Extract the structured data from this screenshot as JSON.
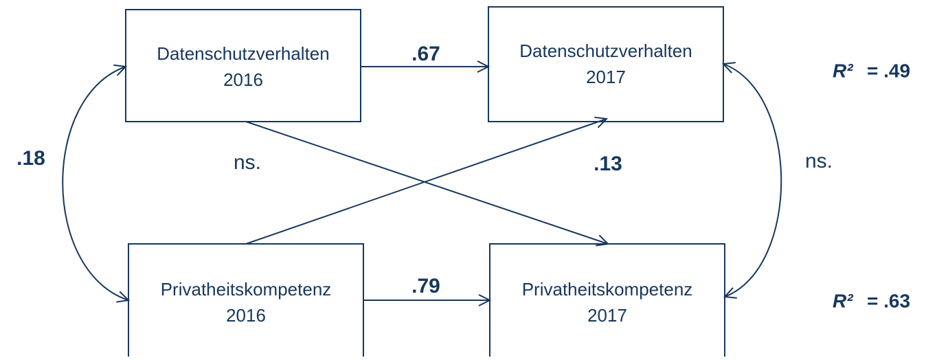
{
  "nodes": [
    {
      "label": "Datenschutzverhalten",
      "year": "2016"
    },
    {
      "label": "Datenschutzverhalten",
      "year": "2017"
    },
    {
      "label": "Privatheitskompetenz",
      "year": "2016"
    },
    {
      "label": "Privatheitskompetenz",
      "year": "2017"
    }
  ],
  "edges": [
    {
      "label": ".67"
    },
    {
      "label": ".79"
    },
    {
      "label": ".18"
    },
    {
      "label": "ns."
    },
    {
      "label": ".13"
    },
    {
      "label": "ns."
    }
  ],
  "r_squared": [
    {
      "symbol": "R²",
      "text": "= .49"
    },
    {
      "symbol": "R²",
      "text": "= .63"
    }
  ]
}
